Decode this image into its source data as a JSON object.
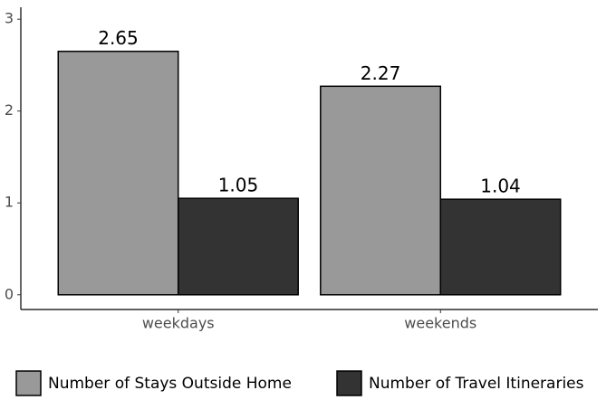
{
  "chart_data": {
    "type": "bar",
    "categories": [
      "weekdays",
      "weekends"
    ],
    "series": [
      {
        "name": "Number of Stays Outside Home",
        "color": "#999999",
        "values": [
          2.65,
          2.27
        ]
      },
      {
        "name": "Number of Travel Itineraries",
        "color": "#333333",
        "values": [
          1.05,
          1.04
        ]
      }
    ],
    "ylim": [
      -0.16,
      3.13
    ],
    "yticks": [
      0,
      1,
      2,
      3
    ],
    "legend": "bottom"
  }
}
